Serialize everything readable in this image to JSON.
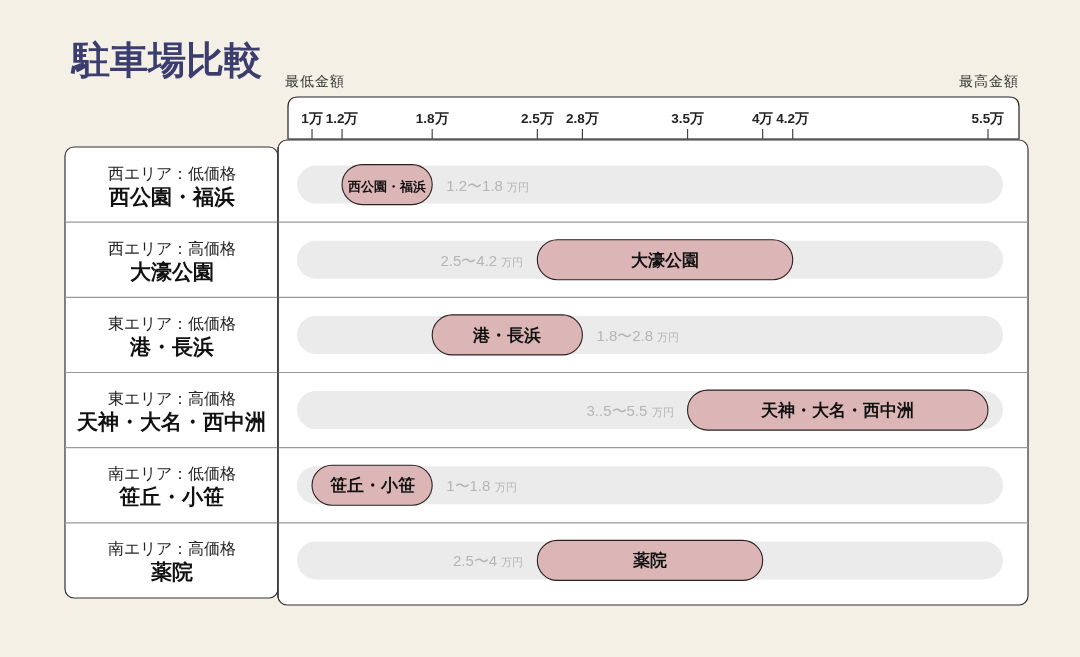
{
  "chart_data": {
    "type": "bar",
    "orientation": "horizontal",
    "title": "駐車場比較",
    "categories": [
      "西公園・福浜",
      "大濠公園",
      "港・長浜",
      "天神・大名・西中洲",
      "笹丘・小笹",
      "薬院"
    ],
    "base": [
      1.2,
      2.5,
      1.8,
      3.5,
      1,
      2.5
    ],
    "values": [
      0.6,
      1.7,
      1,
      2,
      0.8,
      1.5
    ],
    "color": "#dcb6b6",
    "xlim": [
      0.9,
      5.6
    ],
    "xticks": [
      {
        "value": 1,
        "label": "1万"
      },
      {
        "value": 1.2,
        "label": "1.2万"
      },
      {
        "value": 1.8,
        "label": "1.8万"
      },
      {
        "value": 2.5,
        "label": "2.5万"
      },
      {
        "value": 2.8,
        "label": "2.8万"
      },
      {
        "value": 3.5,
        "label": "3.5万"
      },
      {
        "value": 4,
        "label": "4万"
      },
      {
        "value": 4.2,
        "label": "4.2万"
      },
      {
        "value": 5.5,
        "label": "5.5万"
      }
    ],
    "annotations": [
      "最低金額",
      "最高金額",
      "西エリア：低価格",
      "西エリア：高価格",
      "東エリア：低価格",
      "東エリア：高価格",
      "南エリア：低価格",
      "南エリア：高価格",
      {
        "text": "1.2〜1.8 万円",
        "x": 1.8,
        "y": "西公園・福浜"
      },
      {
        "text": "2.5〜4.2 万円",
        "x": 2.5,
        "y": "大濠公園"
      },
      {
        "text": "1.8〜2.8 万円",
        "x": 2.8,
        "y": "港・長浜"
      },
      {
        "text": "3..5〜5.5 万円",
        "x": 3.5,
        "y": "天神・大名・西中洲"
      },
      {
        "text": "1〜1.8 万円",
        "x": 1.8,
        "y": "笹丘・小笹"
      },
      {
        "text": "2.5〜4 万円",
        "x": 2.5,
        "y": "薬院"
      }
    ]
  }
}
